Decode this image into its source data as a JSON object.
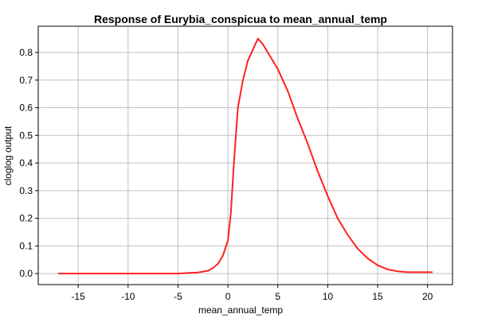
{
  "chart_data": {
    "type": "line",
    "title": "Response of Eurybia_conspicua to mean_annual_temp",
    "xlabel": "mean_annual_temp",
    "ylabel": "cloglog output",
    "xlim": [
      -19,
      22.5
    ],
    "ylim": [
      -0.04,
      0.895
    ],
    "xticks": [
      -15,
      -10,
      -5,
      0,
      5,
      10,
      15,
      20
    ],
    "yticks": [
      0.0,
      0.1,
      0.2,
      0.3,
      0.4,
      0.5,
      0.6,
      0.7,
      0.8
    ],
    "ytick_labels": [
      "0.0",
      "0.1",
      "0.2",
      "0.3",
      "0.4",
      "0.5",
      "0.6",
      "0.7",
      "0.8"
    ],
    "grid": true,
    "series": [
      {
        "color": "#ff2020",
        "x": [
          -17,
          -10,
          -5,
          -4,
          -3,
          -2,
          -1.5,
          -1,
          -0.5,
          0,
          0.3,
          0.6,
          1,
          1.5,
          2,
          2.5,
          3,
          3.5,
          4,
          5,
          6,
          7,
          8,
          9,
          10,
          11,
          12,
          13,
          14,
          15,
          16,
          17,
          18,
          20.5
        ],
        "y": [
          0.0,
          0.0,
          0.0,
          0.002,
          0.004,
          0.01,
          0.02,
          0.035,
          0.065,
          0.12,
          0.22,
          0.4,
          0.6,
          0.7,
          0.77,
          0.81,
          0.85,
          0.83,
          0.8,
          0.74,
          0.66,
          0.56,
          0.47,
          0.37,
          0.28,
          0.2,
          0.14,
          0.09,
          0.055,
          0.03,
          0.015,
          0.008,
          0.005,
          0.005
        ]
      }
    ]
  }
}
